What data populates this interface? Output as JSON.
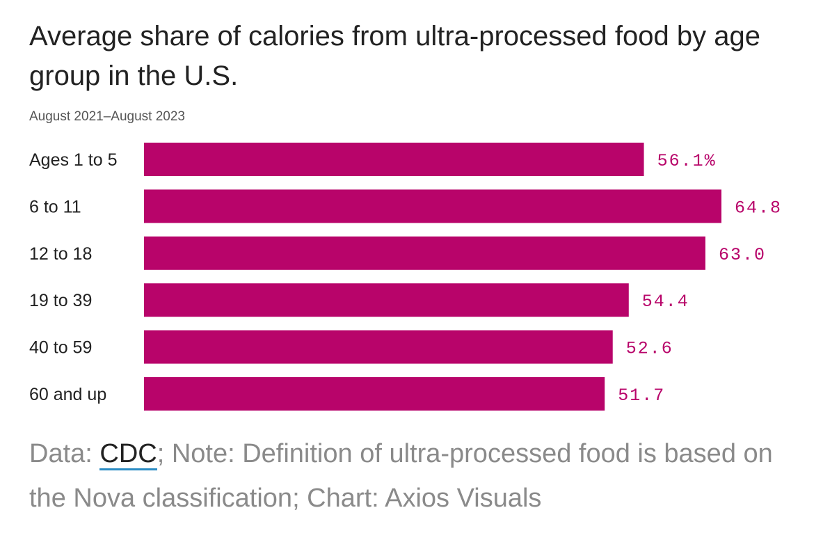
{
  "colors": {
    "bar": "#b8046a",
    "value_text": "#b8046a",
    "link_underline": "#2a8cc4"
  },
  "chart_data": {
    "type": "bar",
    "orientation": "horizontal",
    "title": "Average share of calories from ultra-processed food by age group in the U.S.",
    "subtitle": "August 2021–August 2023",
    "categories": [
      "Ages 1 to 5",
      "6 to 11",
      "12 to 18",
      "19 to 39",
      "40 to 59",
      "60 and up"
    ],
    "values": [
      56.1,
      64.8,
      63.0,
      54.4,
      52.6,
      51.7
    ],
    "value_labels": [
      "56.1%",
      "64.8",
      "63.0",
      "54.4",
      "52.6",
      "51.7"
    ],
    "unit": "%",
    "xlim": [
      0,
      64.8
    ],
    "xlabel": "",
    "ylabel": ""
  },
  "footer": {
    "prefix": "Data: ",
    "source_link": "CDC",
    "rest": "; Note: Definition of ultra-processed food is based on the Nova classification; Chart: Axios Visuals"
  }
}
